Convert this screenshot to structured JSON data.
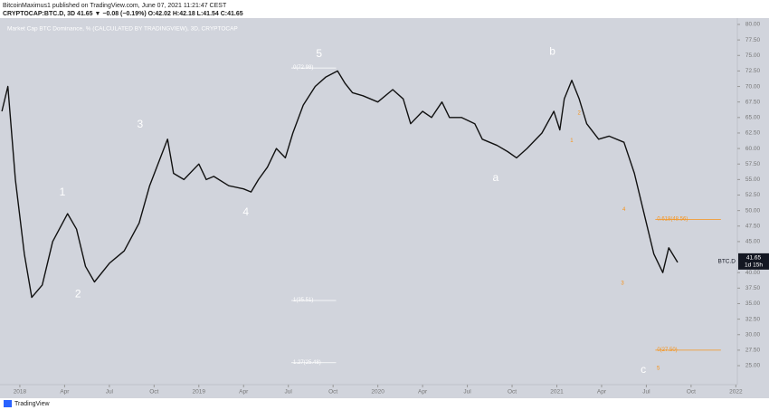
{
  "header": {
    "publisher": "BitcoinMaximus1 published on TradingView.com, June 07, 2021 11:21:47 CEST",
    "symbol_line": "CRYPTOCAP:BTC.D, 3D 41.65 ▼ −0.08 (−0.19%) O:42.02 H:42.18 L:41.54 C:41.65"
  },
  "footer": {
    "brand": "TradingView"
  },
  "chart_data": {
    "type": "line",
    "legend": "Market Cap BTC Dominance, % (CALCULATED BY TRADINGVIEW), 3D, CRYPTOCAP",
    "price_tag": {
      "symbol": "BTC.D",
      "value": 41.65,
      "countdown": "1d 15h"
    },
    "xlim": [
      -1.33,
      48.1
    ],
    "ylim": [
      21.94,
      81.02
    ],
    "xticks": [
      {
        "value": 0,
        "label": "2018"
      },
      {
        "value": 3,
        "label": "Apr"
      },
      {
        "value": 6,
        "label": "Jul"
      },
      {
        "value": 9,
        "label": "Oct"
      },
      {
        "value": 12,
        "label": "2019"
      },
      {
        "value": 15,
        "label": "Apr"
      },
      {
        "value": 18,
        "label": "Jul"
      },
      {
        "value": 21,
        "label": "Oct"
      },
      {
        "value": 24,
        "label": "2020"
      },
      {
        "value": 27,
        "label": "Apr"
      },
      {
        "value": 30,
        "label": "Jul"
      },
      {
        "value": 33,
        "label": "Oct"
      },
      {
        "value": 36,
        "label": "2021"
      },
      {
        "value": 39,
        "label": "Apr"
      },
      {
        "value": 42,
        "label": "Jul"
      },
      {
        "value": 45,
        "label": "Oct"
      },
      {
        "value": 48,
        "label": "2022"
      }
    ],
    "yticks": [
      {
        "value": 25,
        "label": "25.00"
      },
      {
        "value": 27.5,
        "label": "27.50"
      },
      {
        "value": 30,
        "label": "30.00"
      },
      {
        "value": 32.5,
        "label": "32.50"
      },
      {
        "value": 35,
        "label": "35.00"
      },
      {
        "value": 37.5,
        "label": "37.50"
      },
      {
        "value": 40,
        "label": "40.00"
      },
      {
        "value": 45,
        "label": "45.00"
      },
      {
        "value": 47.5,
        "label": "47.50"
      },
      {
        "value": 50,
        "label": "50.00"
      },
      {
        "value": 52.5,
        "label": "52.50"
      },
      {
        "value": 55,
        "label": "55.00"
      },
      {
        "value": 57.5,
        "label": "57.50"
      },
      {
        "value": 60,
        "label": "60.00"
      },
      {
        "value": 62.5,
        "label": "62.50"
      },
      {
        "value": 65,
        "label": "65.00"
      },
      {
        "value": 67.5,
        "label": "67.50"
      },
      {
        "value": 70,
        "label": "70.00"
      },
      {
        "value": 72.5,
        "label": "72.50"
      },
      {
        "value": 75,
        "label": "75.00"
      },
      {
        "value": 77.5,
        "label": "77.50"
      },
      {
        "value": 80,
        "label": "80.00"
      }
    ],
    "series": [
      {
        "name": "BTC.D",
        "color": "#111111",
        "x": [
          -1.2,
          -0.8,
          -0.3,
          0.3,
          0.8,
          1.5,
          2.2,
          3.2,
          3.8,
          4.4,
          5,
          6,
          7,
          8,
          8.7,
          9.5,
          9.9,
          10.3,
          11,
          12,
          12.5,
          13,
          14,
          15,
          15.5,
          16,
          16.6,
          17.2,
          17.8,
          18.3,
          19,
          19.8,
          20.5,
          21.3,
          21.8,
          22.3,
          23,
          24,
          25,
          25.7,
          26.2,
          27,
          27.6,
          28.3,
          28.8,
          29.6,
          30.5,
          31,
          32,
          32.7,
          33.3,
          34,
          35,
          35.8,
          36.2,
          36.5,
          37,
          37.5,
          38,
          38.8,
          39.5,
          40.5,
          41.2,
          41.8,
          42.5,
          43.1,
          43.5,
          44.1
        ],
        "values": [
          66,
          70,
          55,
          43,
          36,
          38,
          45,
          49.5,
          47,
          41,
          38.5,
          41.5,
          43.5,
          48,
          54,
          59,
          61.5,
          56,
          55,
          57.5,
          55,
          55.5,
          54,
          53.5,
          53,
          55,
          57,
          60,
          58.5,
          62.5,
          67,
          70,
          71.5,
          72.5,
          70.5,
          69,
          68.5,
          67.5,
          69.5,
          68,
          64,
          66,
          65,
          67.5,
          65,
          65,
          64,
          61.5,
          60.5,
          59.5,
          58.5,
          60,
          62.5,
          66,
          63,
          68,
          71,
          68,
          64,
          61.5,
          62,
          61,
          56,
          50,
          43,
          40,
          44,
          41.65
        ]
      }
    ],
    "levels": [
      {
        "label": "0.618(48.56)",
        "value": 48.56,
        "color": "#f7931a",
        "xlim": [
          42.6,
          47
        ]
      },
      {
        "label": "0(27.50)",
        "value": 27.5,
        "color": "#f7931a",
        "xlim": [
          42.6,
          47
        ]
      },
      {
        "label": "1(35.51)",
        "value": 35.51,
        "color": "#ffffff",
        "xlim": [
          18.2,
          21.2
        ]
      },
      {
        "label": "1.27(25.48)",
        "value": 25.48,
        "color": "#ffffff",
        "xlim": [
          18.2,
          21.2
        ]
      },
      {
        "label": "0(72.98)",
        "value": 72.98,
        "color": "#ffffff",
        "xlim": [
          18.2,
          21.2
        ]
      }
    ],
    "annotations": [
      {
        "text": "1",
        "x": 2.85,
        "y": 52.9,
        "color": "#ffffff"
      },
      {
        "text": "2",
        "x": 3.9,
        "y": 36.5,
        "color": "#ffffff"
      },
      {
        "text": "3",
        "x": 8.06,
        "y": 63.8,
        "color": "#ffffff"
      },
      {
        "text": "4",
        "x": 15.15,
        "y": 49.7,
        "color": "#ffffff"
      },
      {
        "text": "5",
        "x": 20.06,
        "y": 75.2,
        "color": "#ffffff"
      },
      {
        "text": "a",
        "x": 31.9,
        "y": 55.2,
        "color": "#ffffff"
      },
      {
        "text": "b",
        "x": 35.7,
        "y": 75.6,
        "color": "#ffffff"
      },
      {
        "text": "c",
        "x": 41.8,
        "y": 24.3,
        "color": "#ffffff"
      },
      {
        "text": "1",
        "x": 37.0,
        "y": 61.3,
        "color": "#f7931a"
      },
      {
        "text": "2",
        "x": 37.5,
        "y": 65.7,
        "color": "#f7931a"
      },
      {
        "text": "3",
        "x": 40.4,
        "y": 38.3,
        "color": "#f7931a"
      },
      {
        "text": "4",
        "x": 40.5,
        "y": 50.2,
        "color": "#f7931a"
      },
      {
        "text": "5",
        "x": 42.8,
        "y": 24.6,
        "color": "#f7931a"
      }
    ]
  }
}
